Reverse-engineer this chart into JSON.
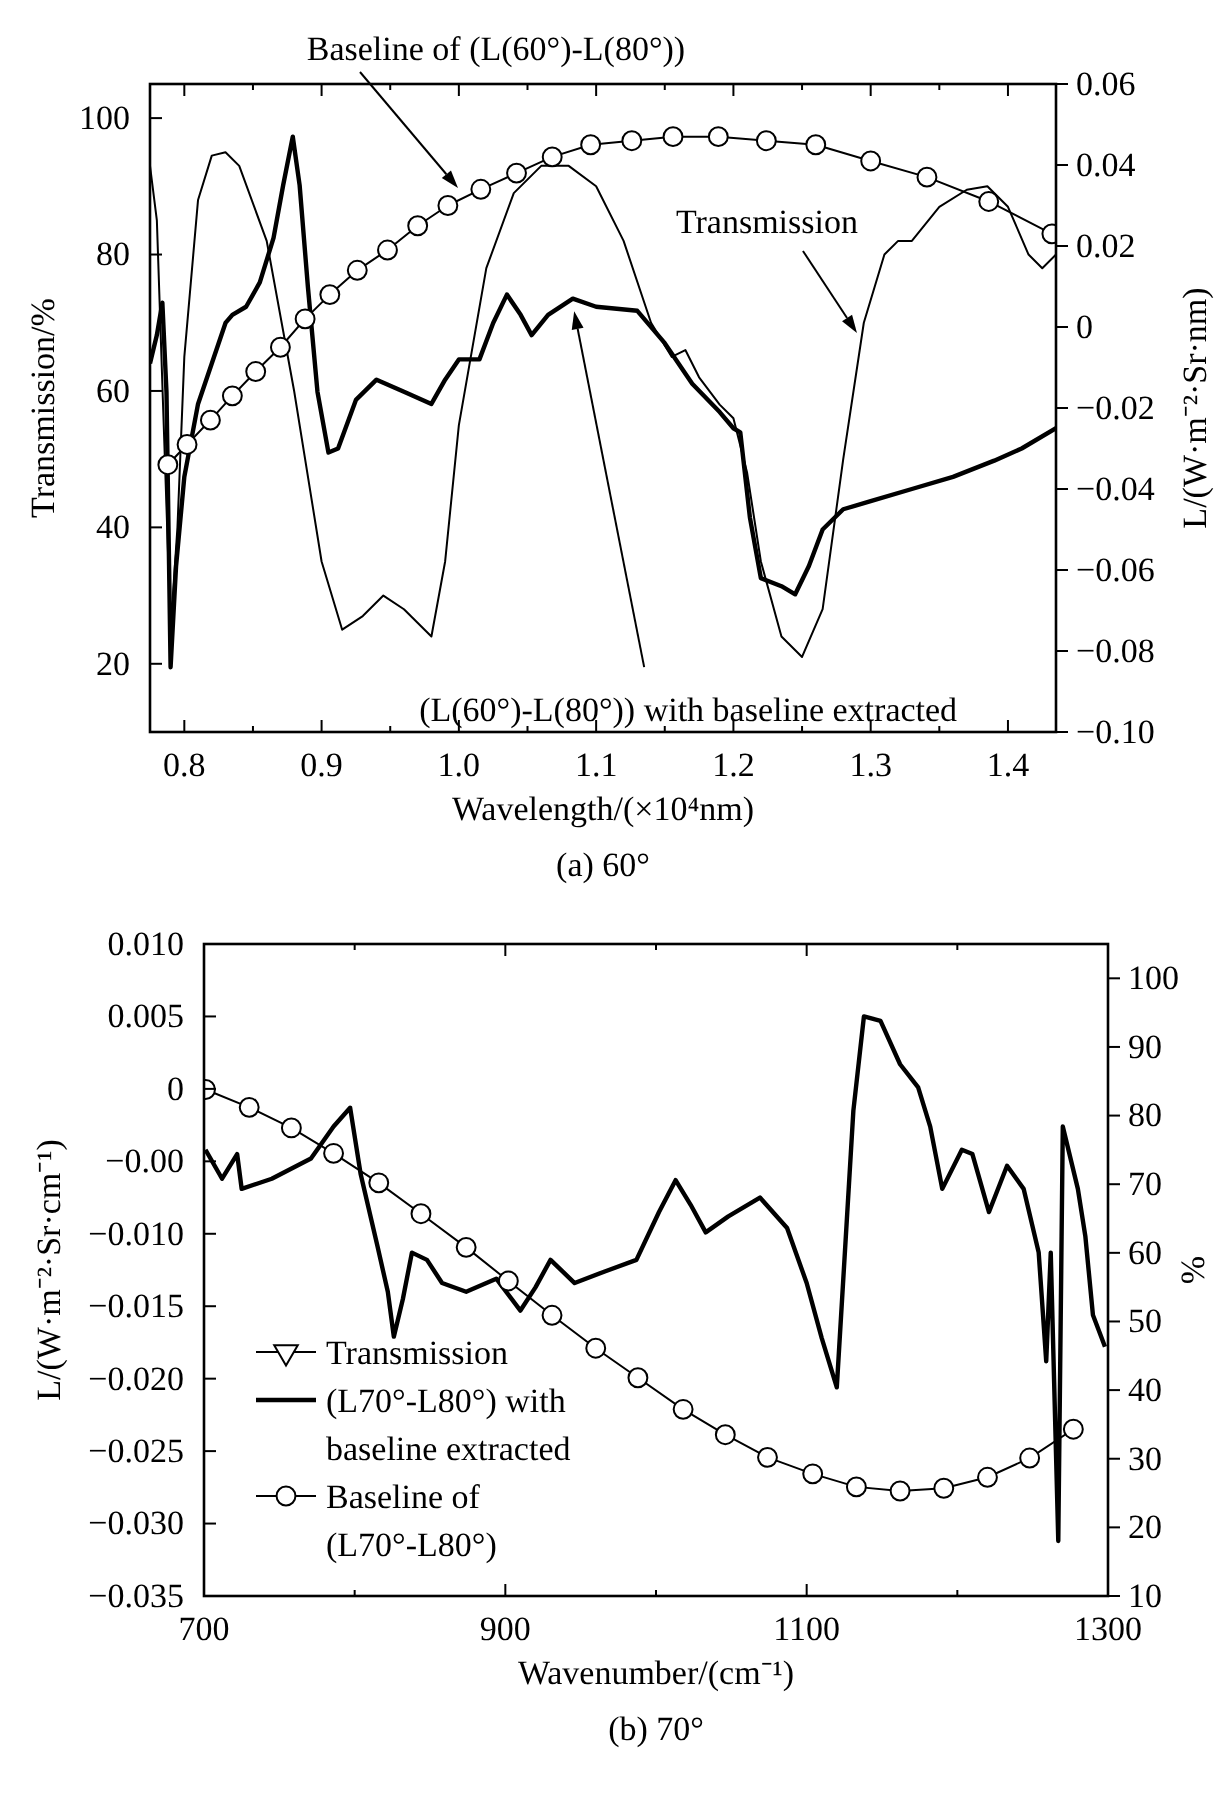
{
  "chart_data": [
    {
      "type": "line",
      "title": "(a) 60°",
      "xlabel": "Wavelength/(×10⁴nm)",
      "ylabel": "Transmission/%",
      "y2label": "L/(W·m⁻²·Sr·nm)",
      "xlim": [
        0.775,
        1.435
      ],
      "xticks": [
        0.8,
        {
          "value": 0.85,
          "label": null
        },
        0.9,
        {
          "value": 0.95,
          "label": null
        },
        {
          "value": 1.0,
          "label": "1.0"
        },
        {
          "value": 1.05,
          "label": null
        },
        1.1,
        {
          "value": 1.15,
          "label": null
        },
        1.2,
        {
          "value": 1.25,
          "label": null
        },
        1.3,
        {
          "value": 1.35,
          "label": null
        },
        1.4
      ],
      "ylim": [
        10,
        105
      ],
      "yticks": [
        20,
        40,
        60,
        80,
        100
      ],
      "y2lim": [
        -0.1,
        0.06
      ],
      "y2ticks": [
        {
          "value": 0.06,
          "label": "0.06"
        },
        {
          "value": 0.04,
          "label": "0.04"
        },
        {
          "value": 0.02,
          "label": "0.02"
        },
        {
          "value": 0,
          "label": "0"
        },
        {
          "value": -0.02,
          "label": "−0.02"
        },
        {
          "value": -0.04,
          "label": "−0.04"
        },
        {
          "value": -0.06,
          "label": "−0.06"
        },
        {
          "value": -0.08,
          "label": "−0.08"
        },
        {
          "value": -0.1,
          "label": "−0.10"
        }
      ],
      "series": [
        {
          "color": "#000000",
          "x": [
            0.775,
            0.78,
            0.785,
            0.79,
            0.795,
            0.8,
            0.81,
            0.82,
            0.83,
            0.84,
            0.86,
            0.88,
            0.9,
            0.915,
            0.93,
            0.945,
            0.96,
            0.98,
            0.99,
            1.0,
            1.02,
            1.04,
            1.06,
            1.08,
            1.1,
            1.12,
            1.14,
            1.155,
            1.165,
            1.175,
            1.19,
            1.2,
            1.21,
            1.22,
            1.235,
            1.25,
            1.265,
            1.28,
            1.295,
            1.31,
            1.32,
            1.33,
            1.35,
            1.37,
            1.385,
            1.4,
            1.415,
            1.425,
            1.435
          ],
          "values": [
            93,
            85,
            55,
            25,
            40,
            65,
            88,
            94.5,
            95,
            93,
            82,
            60,
            35,
            25,
            27,
            30,
            28,
            24,
            35,
            55,
            78,
            89,
            93,
            93,
            90,
            82,
            70,
            65,
            66,
            62,
            58,
            56,
            48,
            35,
            24,
            21,
            28,
            50,
            70,
            80,
            82,
            82,
            87,
            89.5,
            90,
            87,
            80,
            78,
            80
          ]
        },
        {
          "axis": "y2",
          "color": "#000000",
          "x": [
            0.775,
            0.78,
            0.784,
            0.787,
            0.79,
            0.794,
            0.8,
            0.81,
            0.82,
            0.83,
            0.835,
            0.845,
            0.855,
            0.865,
            0.872,
            0.879,
            0.884,
            0.89,
            0.897,
            0.905,
            0.912,
            0.925,
            0.94,
            0.96,
            0.98,
            0.99,
            1.0,
            1.015,
            1.025,
            1.035,
            1.045,
            1.053,
            1.065,
            1.083,
            1.1,
            1.13,
            1.15,
            1.17,
            1.19,
            1.2,
            1.205,
            1.212,
            1.22,
            1.235,
            1.245,
            1.255,
            1.265,
            1.28,
            1.3,
            1.33,
            1.36,
            1.39,
            1.41,
            1.435
          ],
          "values": [
            -0.009,
            -0.002,
            0.006,
            -0.016,
            -0.084,
            -0.059,
            -0.037,
            -0.019,
            -0.009,
            0.001,
            0.003,
            0.005,
            0.011,
            0.022,
            0.035,
            0.047,
            0.035,
            0.01,
            -0.016,
            -0.031,
            -0.03,
            -0.018,
            -0.013,
            -0.016,
            -0.019,
            -0.013,
            -0.008,
            -0.008,
            0.001,
            0.008,
            0.003,
            -0.002,
            0.003,
            0.007,
            0.005,
            0.004,
            -0.004,
            -0.014,
            -0.021,
            -0.025,
            -0.026,
            -0.047,
            -0.062,
            -0.064,
            -0.066,
            -0.059,
            -0.05,
            -0.045,
            -0.043,
            -0.04,
            -0.037,
            -0.033,
            -0.03,
            -0.025
          ]
        },
        {
          "axis": "y2",
          "color": "#000000",
          "marker": "circle",
          "x": [
            0.788,
            0.802,
            0.819,
            0.835,
            0.852,
            0.87,
            0.888,
            0.906,
            0.926,
            0.948,
            0.97,
            0.992,
            1.016,
            1.042,
            1.068,
            1.096,
            1.126,
            1.156,
            1.189,
            1.224,
            1.26,
            1.3,
            1.341,
            1.386,
            1.432
          ],
          "values": [
            -0.034,
            -0.029,
            -0.023,
            -0.017,
            -0.011,
            -0.005,
            0.002,
            0.008,
            0.014,
            0.019,
            0.025,
            0.03,
            0.034,
            0.038,
            0.042,
            0.045,
            0.046,
            0.047,
            0.047,
            0.046,
            0.045,
            0.041,
            0.037,
            0.031,
            0.023
          ]
        }
      ],
      "annotations": [
        "Baseline of (L(60°)-L(80°))",
        {
          "text": "Transmission",
          "x": 1.29,
          "y": 68.5
        },
        {
          "text": "(L(60°)-L(80°)) with baseline extracted",
          "x": 1.084,
          "y": 71.7
        }
      ]
    },
    {
      "type": "line",
      "title": "(b) 70°",
      "xlabel": "Wavenumber/(cm⁻¹)",
      "ylabel": "L/(W·m⁻²·Sr·cm⁻¹)",
      "y2label": "%",
      "xlim": [
        700,
        1300
      ],
      "xticks": [
        700,
        {
          "value": 800,
          "label": null
        },
        900,
        {
          "value": 1000,
          "label": null
        },
        1100,
        {
          "value": 1200,
          "label": null
        },
        1300
      ],
      "ylim": [
        -0.035,
        0.01
      ],
      "yticks": [
        {
          "value": 0.01,
          "label": "0.010"
        },
        {
          "value": 0.005,
          "label": "0.005"
        },
        {
          "value": 0,
          "label": "0"
        },
        {
          "value": -0.005,
          "label": "−0.00"
        },
        {
          "value": -0.01,
          "label": "−0.010"
        },
        {
          "value": -0.015,
          "label": "−0.015"
        },
        {
          "value": -0.02,
          "label": "−0.020"
        },
        {
          "value": -0.025,
          "label": "−0.025"
        },
        {
          "value": -0.03,
          "label": "−0.030"
        },
        {
          "value": -0.035,
          "label": "−0.035"
        }
      ],
      "y2lim": [
        10,
        105
      ],
      "y2ticks": [
        10,
        20,
        30,
        40,
        50,
        60,
        70,
        80,
        90,
        100
      ],
      "legend": "bottom left",
      "series": [
        {
          "axis": "y2",
          "name": "Transmission",
          "color": "#000000",
          "marker": "triangle"
        },
        {
          "name": "(L70°-L80°) with baseline extracted",
          "color": "#000000",
          "x": [
            701,
            712,
            722,
            725,
            745,
            771,
            786,
            797,
            804,
            815,
            822,
            826,
            832,
            838,
            848,
            858,
            874,
            894,
            910,
            920,
            930,
            946,
            966,
            987,
            1002,
            1013,
            1023,
            1033,
            1048,
            1069,
            1087,
            1100,
            1110,
            1120,
            1131,
            1138,
            1149,
            1162,
            1174,
            1182,
            1190,
            1203,
            1210,
            1221,
            1233,
            1244,
            1254,
            1259,
            1262,
            1267,
            1270,
            1280,
            1285,
            1290,
            1298
          ],
          "values": [
            -0.0042,
            -0.0062,
            -0.0045,
            -0.0069,
            -0.0062,
            -0.0048,
            -0.0026,
            -0.0013,
            -0.0059,
            -0.0108,
            -0.014,
            -0.0171,
            -0.0145,
            -0.0113,
            -0.0118,
            -0.0134,
            -0.014,
            -0.0131,
            -0.0153,
            -0.0137,
            -0.0118,
            -0.0134,
            -0.0126,
            -0.0118,
            -0.0085,
            -0.0063,
            -0.008,
            -0.0099,
            -0.0088,
            -0.0075,
            -0.0096,
            -0.0134,
            -0.0172,
            -0.0206,
            -0.0015,
            0.005,
            0.0047,
            0.0017,
            0.0001,
            -0.0026,
            -0.0069,
            -0.0042,
            -0.0045,
            -0.0085,
            -0.0053,
            -0.0069,
            -0.0113,
            -0.0188,
            -0.0113,
            -0.0312,
            -0.0026,
            -0.0069,
            -0.0102,
            -0.0156,
            -0.0178
          ]
        },
        {
          "axis": "y2",
          "name": "Baseline of (L70°-L80°)",
          "color": "#000000",
          "marker": "circle",
          "x": [
            701,
            730,
            758,
            786,
            816,
            844,
            874,
            902,
            931,
            960,
            988,
            1018,
            1046,
            1074,
            1104,
            1133,
            1162,
            1191,
            1220,
            1248,
            1277
          ],
          "values": [
            83.8,
            81.2,
            78.2,
            74.5,
            70.2,
            65.7,
            60.8,
            55.9,
            50.9,
            46.1,
            41.8,
            37.2,
            33.5,
            30.2,
            27.8,
            25.9,
            25.3,
            25.7,
            27.3,
            30.1,
            34.3
          ]
        }
      ]
    }
  ]
}
